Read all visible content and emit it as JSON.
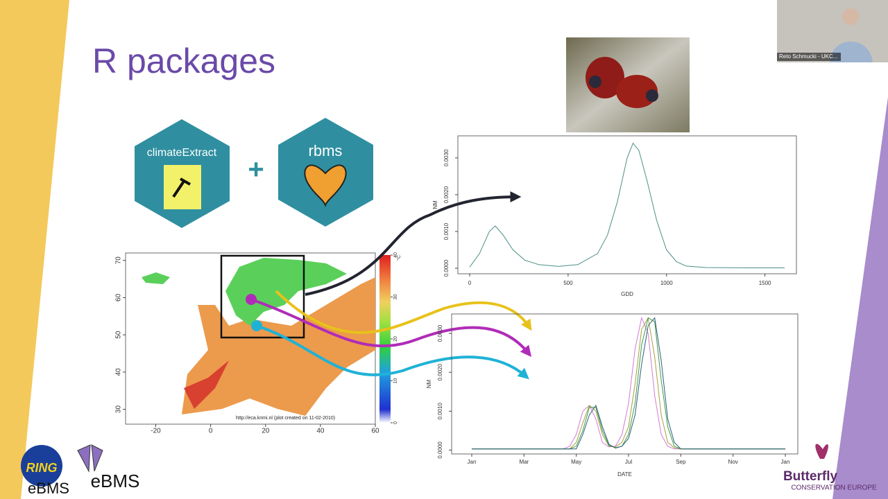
{
  "slide": {
    "title": "R packages",
    "packages": [
      "climateExtract",
      "rbms"
    ],
    "plus": "+",
    "video_caption": "Reto Schmucki - UKC...",
    "logos": {
      "ring": "RING",
      "ebms_1": "eBMS",
      "ebms_2": "eBMS",
      "bc_name": "Butterfly",
      "bc_sub": "CONSERVATION EUROPE"
    }
  },
  "map": {
    "xlim": [
      -31,
      60
    ],
    "ylim": [
      26,
      72
    ],
    "xticks": [
      -20,
      0,
      20,
      40,
      60
    ],
    "yticks": [
      30,
      40,
      50,
      60,
      70
    ],
    "colorbar_ticks": [
      0,
      10,
      20,
      30,
      40
    ],
    "colorbar_unit": "°C",
    "credit": "http://eca.knmi.nl (plot created on 11-02-2010)"
  },
  "chart_data": [
    {
      "type": "line",
      "xlabel": "GDD",
      "ylabel": "NM",
      "color": "#4a8f86",
      "x": [
        0,
        50,
        100,
        130,
        170,
        220,
        280,
        350,
        450,
        550,
        650,
        700,
        750,
        800,
        830,
        860,
        900,
        950,
        1000,
        1050,
        1100,
        1200,
        1400,
        1600
      ],
      "values": [
        3e-05,
        0.0004,
        0.001,
        0.00115,
        0.0009,
        0.0005,
        0.00022,
        0.0001,
        5e-05,
        0.0001,
        0.0004,
        0.0009,
        0.0018,
        0.003,
        0.0034,
        0.0032,
        0.0024,
        0.0013,
        0.0005,
        0.00018,
        6e-05,
        2e-05,
        1e-05,
        1e-05
      ],
      "xlim": [
        -60,
        1660
      ],
      "ylim": [
        -0.00015,
        0.0036
      ],
      "xticks": [
        0,
        500,
        1000,
        1500
      ],
      "yticks": [
        {
          "value": 0,
          "label": "0.0000"
        },
        {
          "value": 0.001,
          "label": "0.0010"
        },
        {
          "value": 0.002,
          "label": "0.0020"
        },
        {
          "value": 0.003,
          "label": "0.0030"
        }
      ]
    },
    {
      "type": "line",
      "xlabel": "DATE",
      "ylabel": "NM",
      "categories": [
        "Jan",
        null,
        null,
        null,
        null,
        null,
        null,
        null,
        "Mar",
        null,
        null,
        null,
        null,
        null,
        null,
        null,
        "May",
        null,
        null,
        null,
        null,
        null,
        null,
        null,
        "Jul",
        null,
        null,
        null,
        null,
        null,
        null,
        null,
        "Sep",
        null,
        null,
        null,
        null,
        null,
        null,
        null,
        "Nov",
        null,
        null,
        null,
        null,
        null,
        null,
        null,
        "Jan"
      ],
      "ylim": [
        -0.0001,
        0.0035
      ],
      "yticks": [
        {
          "value": 0,
          "label": "0.0000"
        },
        {
          "value": 0.001,
          "label": "0.0010"
        },
        {
          "value": 0.002,
          "label": "0.0020"
        },
        {
          "value": 0.003,
          "label": "0.0030"
        }
      ],
      "series": [
        {
          "color": "#d27ad6",
          "values": [
            3e-05,
            3e-05,
            3e-05,
            3e-05,
            3e-05,
            3e-05,
            3e-05,
            3e-05,
            3e-05,
            3e-05,
            3e-05,
            3e-05,
            3e-05,
            3e-05,
            3e-05,
            0.0001,
            0.0004,
            0.001,
            0.00115,
            0.0008,
            0.0002,
            8e-05,
            0.0001,
            0.0004,
            0.0012,
            0.0026,
            0.0034,
            0.003,
            0.0014,
            0.0004,
            0.0001,
            3e-05,
            3e-05,
            3e-05,
            3e-05,
            3e-05,
            3e-05,
            3e-05,
            3e-05,
            3e-05,
            3e-05,
            3e-05,
            3e-05,
            3e-05,
            3e-05,
            3e-05,
            3e-05,
            3e-05,
            3e-05
          ]
        },
        {
          "color": "#a5a23a",
          "values": [
            3e-05,
            3e-05,
            3e-05,
            3e-05,
            3e-05,
            3e-05,
            3e-05,
            3e-05,
            3e-05,
            3e-05,
            3e-05,
            3e-05,
            3e-05,
            3e-05,
            3e-05,
            3e-05,
            0.0002,
            0.0007,
            0.00115,
            0.001,
            0.0004,
            0.0001,
            8e-05,
            0.0002,
            0.0006,
            0.0017,
            0.0031,
            0.0034,
            0.0024,
            0.0009,
            0.0002,
            6e-05,
            3e-05,
            3e-05,
            3e-05,
            3e-05,
            3e-05,
            3e-05,
            3e-05,
            3e-05,
            3e-05,
            3e-05,
            3e-05,
            3e-05,
            3e-05,
            3e-05,
            3e-05,
            3e-05,
            3e-05
          ]
        },
        {
          "color": "#3f9a4a",
          "values": [
            3e-05,
            3e-05,
            3e-05,
            3e-05,
            3e-05,
            3e-05,
            3e-05,
            3e-05,
            3e-05,
            3e-05,
            3e-05,
            3e-05,
            3e-05,
            3e-05,
            3e-05,
            3e-05,
            0.0001,
            0.0005,
            0.0011,
            0.0011,
            0.0005,
            0.00012,
            6e-05,
            0.0001,
            0.0004,
            0.0012,
            0.0027,
            0.0034,
            0.0033,
            0.0018,
            0.0006,
            0.0001,
            3e-05,
            3e-05,
            3e-05,
            3e-05,
            3e-05,
            3e-05,
            3e-05,
            3e-05,
            3e-05,
            3e-05,
            3e-05,
            3e-05,
            3e-05,
            3e-05,
            3e-05,
            3e-05,
            3e-05
          ]
        },
        {
          "color": "#2c5e7a",
          "values": [
            3e-05,
            3e-05,
            3e-05,
            3e-05,
            3e-05,
            3e-05,
            3e-05,
            3e-05,
            3e-05,
            3e-05,
            3e-05,
            3e-05,
            3e-05,
            3e-05,
            3e-05,
            3e-05,
            3e-05,
            0.0004,
            0.0009,
            0.00115,
            0.0006,
            0.00015,
            5e-05,
            0.0001,
            0.0003,
            0.0009,
            0.0022,
            0.0032,
            0.0034,
            0.0023,
            0.0008,
            0.0002,
            3e-05,
            3e-05,
            3e-05,
            3e-05,
            3e-05,
            3e-05,
            3e-05,
            3e-05,
            3e-05,
            3e-05,
            3e-05,
            3e-05,
            3e-05,
            3e-05,
            3e-05,
            3e-05,
            3e-05
          ]
        }
      ]
    }
  ]
}
